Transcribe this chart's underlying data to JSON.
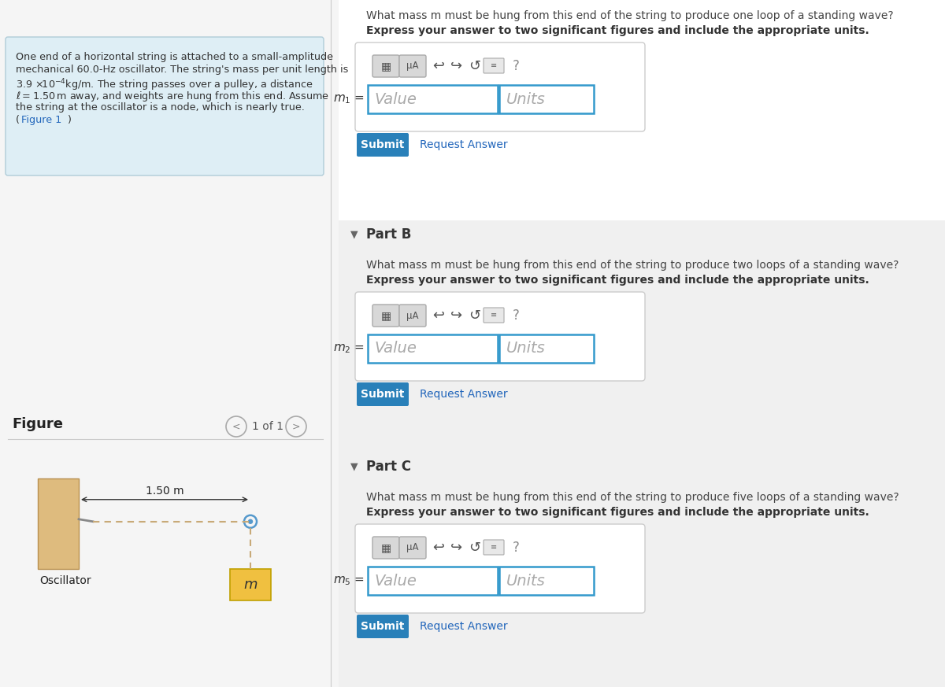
{
  "bg_color": "#f5f5f5",
  "left_panel_bg": "#deeef5",
  "panel_border_color": "#b0ccd8",
  "figure_label": "Figure",
  "figure_nav": "1 of 1",
  "oscillator_label": "Oscillator",
  "distance_label": "1.50 m",
  "mass_label": "m",
  "part_a_question": "What mass m must be hung from this end of the string to produce one loop of a standing wave?",
  "part_a_bold": "Express your answer to two significant figures and include the appropriate units.",
  "part_b_heading": "Part B",
  "part_b_question": "What mass m must be hung from this end of the string to produce two loops of a standing wave?",
  "part_b_bold": "Express your answer to two significant figures and include the appropriate units.",
  "part_c_heading": "Part C",
  "part_c_question": "What mass m must be hung from this end of the string to produce five loops of a standing wave?",
  "part_c_bold": "Express your answer to two significant figures and include the appropriate units.",
  "value_placeholder": "Value",
  "units_placeholder": "Units",
  "submit_text": "Submit",
  "request_answer_text": "Request Answer",
  "toolbar_symbol": "μA",
  "oscillator_color": "#debb7e",
  "mass_color": "#f0c040",
  "string_color": "#c8aa78",
  "pulley_stroke": "#5599cc",
  "arrow_color": "#333333",
  "submit_bg": "#2980b9",
  "submit_text_color": "#ffffff",
  "input_border_color": "#3399cc",
  "divider_color": "#cccccc",
  "toolbar_bg": "#d8d8d8",
  "toolbar_border": "#aaaaaa",
  "part_b_bg": "#f0f0f0",
  "part_c_bg": "#f0f0f0",
  "white": "#ffffff"
}
